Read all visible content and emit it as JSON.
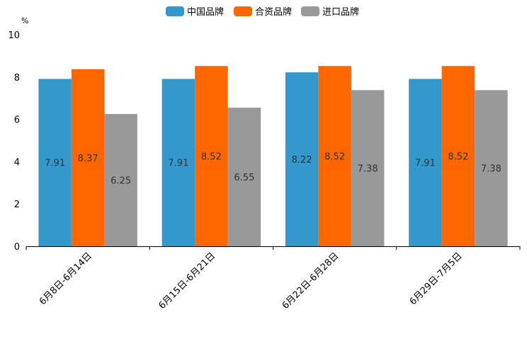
{
  "chart_data": {
    "type": "bar",
    "title": "",
    "xlabel": "",
    "ylabel": "%",
    "ylim": [
      0,
      10
    ],
    "yticks": [
      0,
      2,
      4,
      6,
      8,
      10
    ],
    "legend_position": "top-center",
    "categories": [
      "6月8日-6月14日",
      "6月15日-6月21日",
      "6月22日-6月28日",
      "6月29日-7月5日"
    ],
    "series": [
      {
        "name": "中国品牌",
        "color": "#3399cc",
        "values": [
          7.91,
          7.91,
          8.22,
          7.91
        ]
      },
      {
        "name": "合资品牌",
        "color": "#ff6600",
        "values": [
          8.37,
          8.52,
          8.52,
          8.52
        ]
      },
      {
        "name": "进口品牌",
        "color": "#999999",
        "values": [
          6.25,
          6.55,
          7.38,
          7.38
        ]
      }
    ]
  }
}
